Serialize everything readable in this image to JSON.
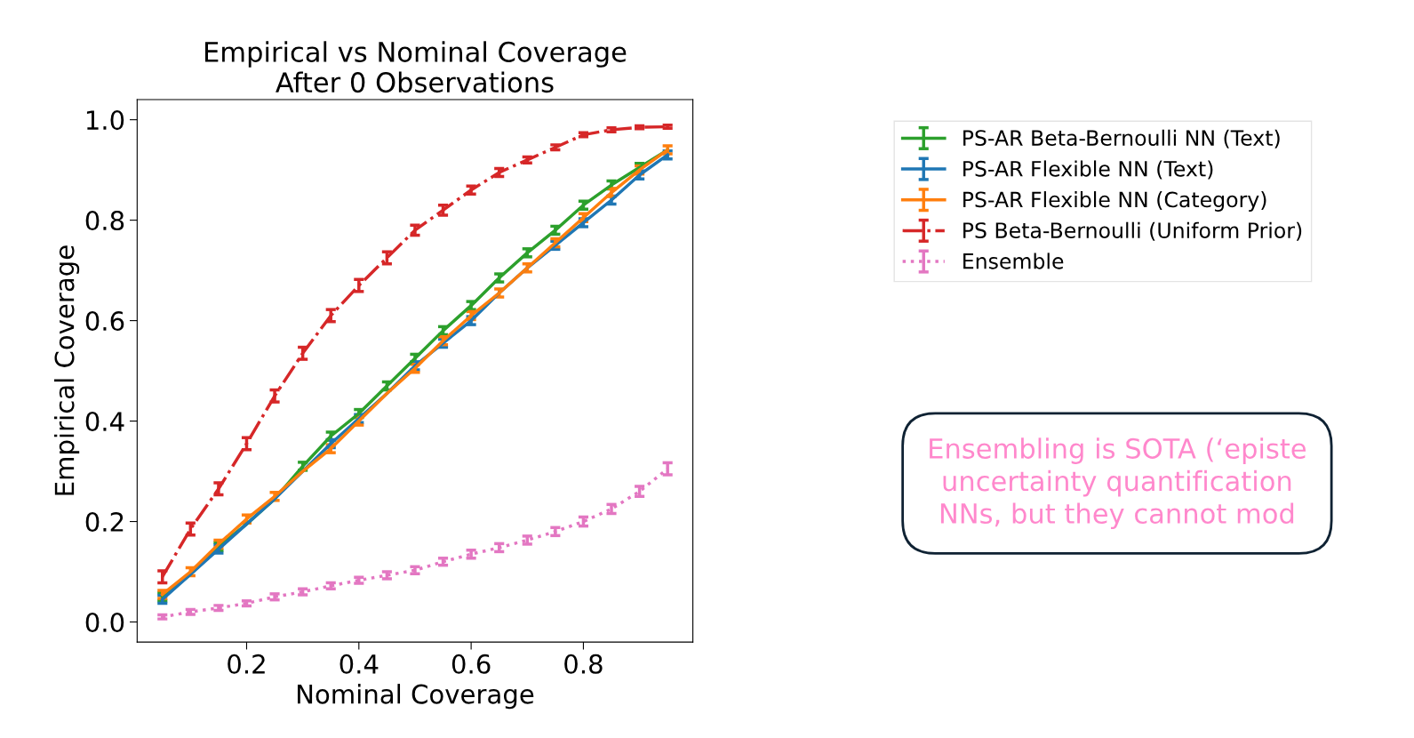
{
  "chart_data": {
    "type": "line",
    "title": "Empirical vs Nominal Coverage\nAfter 0 Observations",
    "xlabel": "Nominal Coverage",
    "ylabel": "Empirical Coverage",
    "x": [
      0.05,
      0.1,
      0.15,
      0.2,
      0.25,
      0.3,
      0.35,
      0.4,
      0.45,
      0.5,
      0.55,
      0.6,
      0.65,
      0.7,
      0.75,
      0.8,
      0.85,
      0.9,
      0.95
    ],
    "series": [
      {
        "name": "PS-AR Beta-Bernoulli NN (Text)",
        "color": "#2ca02c",
        "line_style": "solid",
        "values": [
          0.05,
          0.095,
          0.15,
          0.195,
          0.245,
          0.31,
          0.37,
          0.415,
          0.47,
          0.525,
          0.58,
          0.63,
          0.685,
          0.735,
          0.78,
          0.83,
          0.87,
          0.905,
          0.94
        ],
        "errors": [
          0.008,
          null,
          0.008,
          null,
          null,
          0.008,
          0.008,
          0.008,
          0.008,
          0.008,
          0.008,
          0.008,
          0.008,
          0.008,
          0.008,
          0.008,
          0.008,
          0.008,
          null
        ]
      },
      {
        "name": "PS-AR Flexible NN (Text)",
        "color": "#1f77b4",
        "line_style": "solid",
        "values": [
          0.045,
          0.095,
          0.145,
          0.195,
          0.245,
          0.3,
          0.355,
          0.405,
          0.455,
          0.51,
          0.555,
          0.6,
          0.655,
          0.705,
          0.75,
          0.795,
          0.84,
          0.89,
          0.93
        ],
        "errors": [
          0.008,
          null,
          0.008,
          null,
          null,
          null,
          0.008,
          0.008,
          null,
          0.008,
          0.008,
          0.008,
          null,
          null,
          0.008,
          0.008,
          0.008,
          0.008,
          0.008
        ]
      },
      {
        "name": "PS-AR Flexible NN (Category)",
        "color": "#ff7f0e",
        "line_style": "solid",
        "values": [
          0.055,
          0.1,
          0.155,
          0.205,
          0.25,
          0.3,
          0.345,
          0.4,
          0.455,
          0.505,
          0.56,
          0.61,
          0.655,
          0.705,
          0.755,
          0.805,
          0.855,
          0.9,
          0.94
        ],
        "errors": [
          0.008,
          0.008,
          0.008,
          0.008,
          0.008,
          null,
          0.008,
          0.008,
          null,
          0.008,
          0.008,
          0.008,
          0.008,
          0.008,
          0.008,
          0.008,
          0.008,
          0.008,
          0.008
        ]
      },
      {
        "name": "PS Beta-Bernoulli (Uniform Prior)",
        "color": "#d62728",
        "line_style": "dashdot",
        "values": [
          0.09,
          0.185,
          0.265,
          0.355,
          0.45,
          0.535,
          0.61,
          0.67,
          0.725,
          0.78,
          0.82,
          0.86,
          0.895,
          0.92,
          0.945,
          0.97,
          0.98,
          0.985,
          0.986
        ],
        "errors": [
          0.012,
          0.012,
          0.012,
          0.012,
          0.012,
          0.012,
          0.012,
          0.012,
          0.012,
          0.01,
          0.01,
          0.008,
          0.008,
          0.006,
          0.005,
          0.004,
          0.004,
          0.003,
          0.003
        ]
      },
      {
        "name": "Ensemble",
        "color": "#e377c2",
        "line_style": "dotted",
        "values": [
          0.01,
          0.02,
          0.028,
          0.037,
          0.05,
          0.06,
          0.072,
          0.083,
          0.093,
          0.103,
          0.12,
          0.135,
          0.148,
          0.163,
          0.18,
          0.2,
          0.225,
          0.26,
          0.305
        ],
        "errors": [
          0.004,
          0.005,
          0.005,
          0.005,
          0.006,
          0.006,
          0.006,
          0.006,
          0.007,
          0.007,
          0.007,
          0.008,
          0.008,
          0.008,
          0.008,
          0.009,
          0.009,
          0.01,
          0.012
        ]
      }
    ],
    "xlim": [
      0.005,
      0.995
    ],
    "ylim": [
      -0.04,
      1.04
    ],
    "xticks": [
      {
        "value": 0.2,
        "label": "0.2"
      },
      {
        "value": 0.4,
        "label": "0.4"
      },
      {
        "value": 0.6,
        "label": "0.6"
      },
      {
        "value": 0.8,
        "label": "0.8"
      }
    ],
    "yticks": [
      {
        "value": 0,
        "label": "0.0"
      },
      {
        "value": 0.2,
        "label": "0.2"
      },
      {
        "value": 0.4,
        "label": "0.4"
      },
      {
        "value": 0.6,
        "label": "0.6"
      },
      {
        "value": 0.8,
        "label": "0.8"
      },
      {
        "value": 1,
        "label": "1.0"
      }
    ],
    "grid": false,
    "legend": "right",
    "marker": "none",
    "annotations": [
      "Ensembling is SOTA (‘episte\nuncertainty quantification\nNNs, but they cannot mod"
    ]
  }
}
